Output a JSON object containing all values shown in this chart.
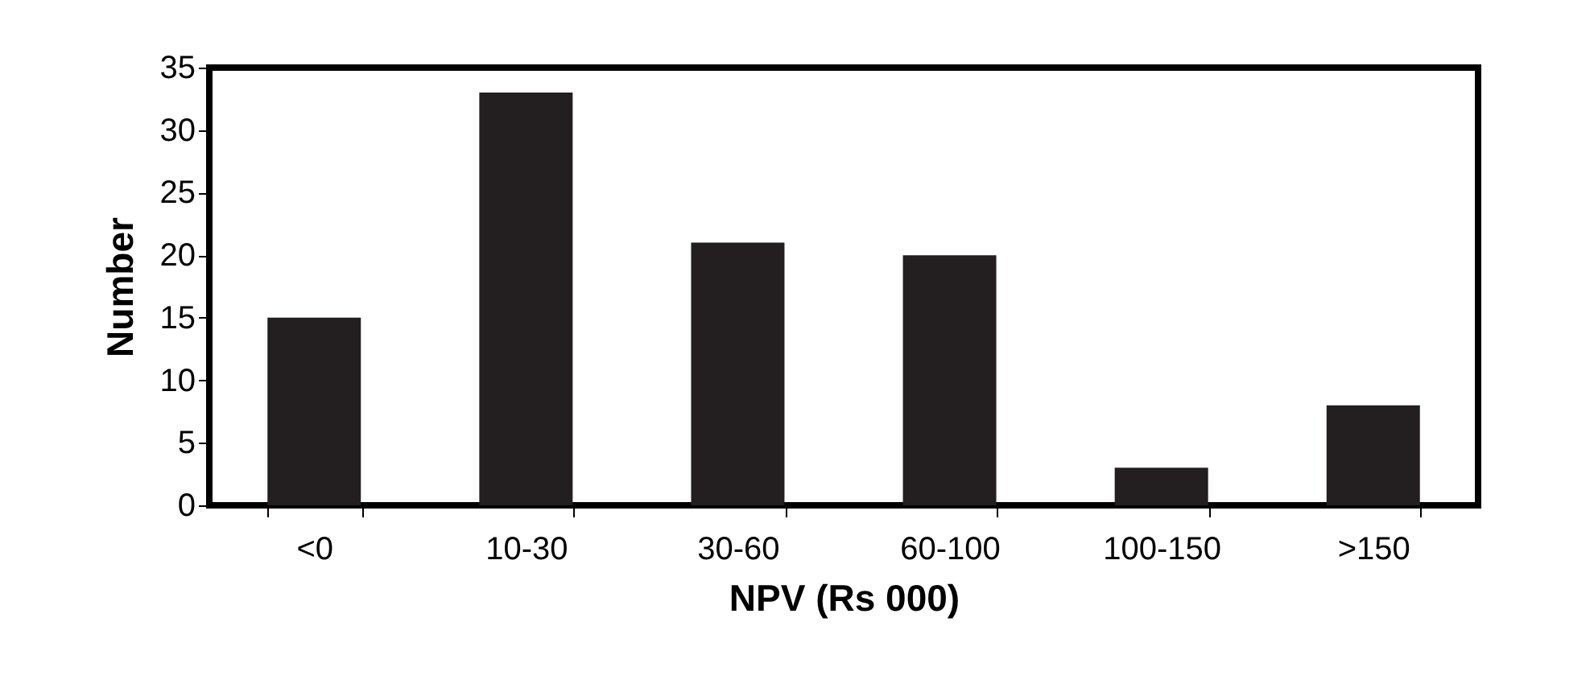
{
  "chart_data": {
    "type": "bar",
    "xlabel": "NPV (Rs 000)",
    "ylabel": "Number",
    "categories": [
      "<0",
      "10-30",
      "30-60",
      "60-100",
      "100-150",
      ">150"
    ],
    "values": [
      15,
      33,
      21,
      20,
      3,
      8
    ],
    "color": "#231f20",
    "ylim": [
      0,
      35
    ],
    "yticks": [
      0,
      5,
      10,
      15,
      20,
      25,
      30,
      35
    ],
    "grid": false
  }
}
